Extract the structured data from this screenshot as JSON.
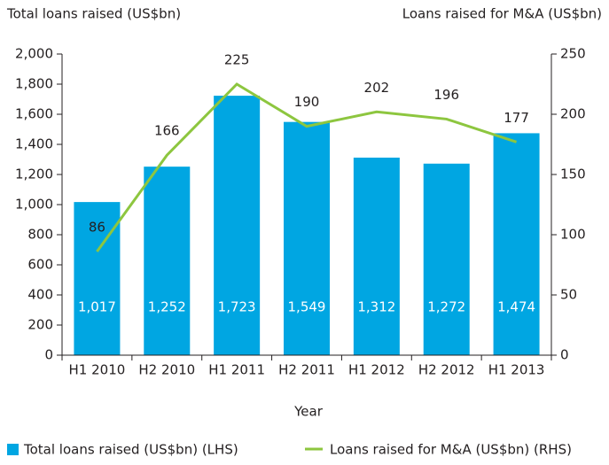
{
  "chart_data": {
    "type": "bar_line",
    "y_label": "Total loans raised (US$bn)",
    "y2_label": "Loans raised for M&A (US$bn)",
    "x_label": "Year",
    "categories": [
      "H1 2010",
      "H2 2010",
      "H1 2011",
      "H2 2011",
      "H1 2012",
      "H2 2012",
      "H1 2013"
    ],
    "series": [
      {
        "name": "Total loans raised (US$bn) (LHS)",
        "type": "bar",
        "color": "#00a6e2",
        "values": [
          1017,
          1252,
          1723,
          1549,
          1312,
          1272,
          1474
        ],
        "value_labels": [
          "1,017",
          "1,252",
          "1,723",
          "1,549",
          "1,312",
          "1,272",
          "1,474"
        ]
      },
      {
        "name": "Loans raised for M&A (US$bn) (RHS)",
        "type": "line",
        "color": "#8dc63f",
        "axis": "y2",
        "values": [
          86,
          166,
          225,
          190,
          202,
          196,
          177
        ]
      }
    ],
    "ylim": [
      0,
      2000
    ],
    "yticks": [
      0,
      200,
      400,
      600,
      800,
      {
        "value": 1000,
        "label": "1,000"
      },
      {
        "value": 1200,
        "label": "1,200"
      },
      {
        "value": 1400,
        "label": "1,400"
      },
      {
        "value": 1600,
        "label": "1,600"
      },
      {
        "value": 1800,
        "label": "1,800"
      },
      {
        "value": 2000,
        "label": "2,000"
      }
    ],
    "y2lim": [
      0,
      250
    ],
    "y2ticks": [
      0,
      50,
      100,
      150,
      200,
      250
    ],
    "legend": "bottom"
  }
}
